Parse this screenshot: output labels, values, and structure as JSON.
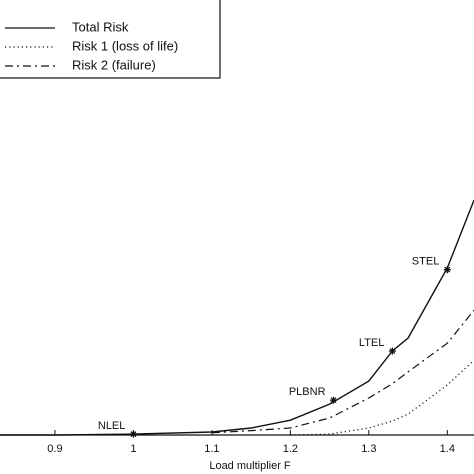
{
  "chart_data": {
    "type": "line",
    "xlabel": "Load multiplier F",
    "x": [
      0.83,
      0.9,
      1.0,
      1.1,
      1.15,
      1.2,
      1.25,
      1.3,
      1.33,
      1.35,
      1.4,
      1.434
    ],
    "series": [
      {
        "name": "Total Risk",
        "color": "#111111",
        "style": "solid",
        "values": [
          0,
          0,
          0.2,
          0.7,
          1.6,
          3.4,
          7.1,
          12.4,
          19.3,
          22.3,
          38.4,
          54.0
        ]
      },
      {
        "name": "Risk 1 (loss of life)",
        "color": "#111111",
        "style": "dotted",
        "values": [
          null,
          null,
          null,
          null,
          null,
          0,
          0.2,
          1.6,
          3.2,
          4.8,
          11.5,
          17.2
        ]
      },
      {
        "name": "Risk 2 (failure)",
        "color": "#111111",
        "style": "dashdot",
        "values": [
          null,
          null,
          null,
          0.5,
          1,
          1.6,
          3.9,
          8.5,
          11.8,
          14.5,
          21.1,
          28.7
        ]
      }
    ],
    "annotations": [
      {
        "text": "NLEL",
        "x": 1.0,
        "y": 0.2
      },
      {
        "text": "PLBNR",
        "x": 1.255,
        "y": 8
      },
      {
        "text": "LTEL",
        "x": 1.33,
        "y": 19.3
      },
      {
        "text": "STEL",
        "x": 1.4,
        "y": 38
      }
    ],
    "xlim": [
      0.83,
      1.434
    ],
    "xticks": [
      0.9,
      1,
      1.1,
      1.2,
      1.3,
      1.4
    ],
    "ylim": [
      0,
      100
    ],
    "legend": "upper left"
  }
}
